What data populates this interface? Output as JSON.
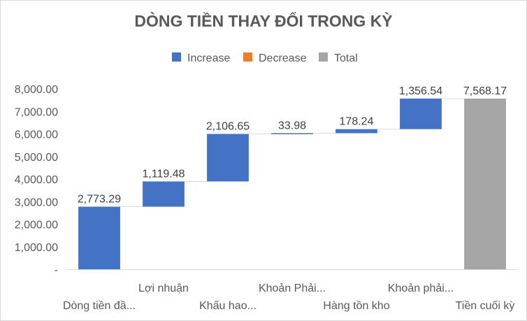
{
  "chart_data": {
    "type": "waterfall",
    "title": "DÒNG TIỀN THAY ĐỔI TRONG KỲ",
    "legend": {
      "placement": "top-center",
      "items": [
        {
          "label": "Increase",
          "color": "#4472C4"
        },
        {
          "label": "Decrease",
          "color": "#ED7D31"
        },
        {
          "label": "Total",
          "color": "#A5A5A5"
        }
      ]
    },
    "y_axis": {
      "min": 0,
      "max": 8000,
      "tick_values": [
        0,
        1000,
        2000,
        3000,
        4000,
        5000,
        6000,
        7000,
        8000
      ],
      "tick_labels": [
        "-",
        "1,000.00",
        "2,000.00",
        "3,000.00",
        "4,000.00",
        "5,000.00",
        "6,000.00",
        "7,000.00",
        "8,000.00"
      ]
    },
    "grid": false,
    "categories": [
      "Dòng tiền đầ...",
      "Lợi nhuận",
      "Khấu hao...",
      "Khoản Phải...",
      "Hàng tồn kho",
      "Khoản phải...",
      "Tiền cuối kỳ"
    ],
    "steps": [
      {
        "value": 2773.29,
        "label": "2,773.29",
        "kind": "increase"
      },
      {
        "value": 1119.48,
        "label": "1,119.48",
        "kind": "increase"
      },
      {
        "value": 2106.65,
        "label": "2,106.65",
        "kind": "increase"
      },
      {
        "value": 33.98,
        "label": "33.98",
        "kind": "increase"
      },
      {
        "value": 178.24,
        "label": "178.24",
        "kind": "increase"
      },
      {
        "value": 1356.54,
        "label": "1,356.54",
        "kind": "increase"
      },
      {
        "value": 7568.17,
        "label": "7,568.17",
        "kind": "total"
      }
    ]
  }
}
